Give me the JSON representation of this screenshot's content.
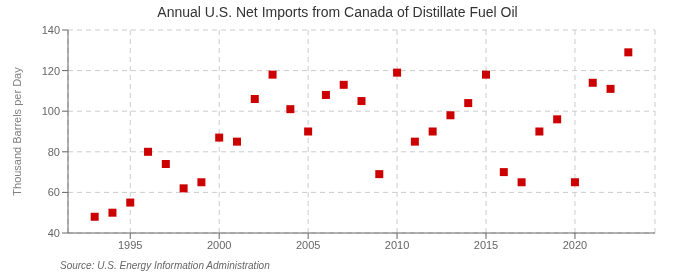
{
  "chart_data": {
    "type": "scatter",
    "title": "Annual U.S. Net Imports from Canada of Distillate Fuel Oil",
    "ylabel": "Thousand Barrels per Day",
    "annotations": [
      "Source: U.S. Energy Information Administration"
    ],
    "x": [
      1993,
      1994,
      1995,
      1996,
      1997,
      1998,
      1999,
      2000,
      2001,
      2002,
      2003,
      2004,
      2005,
      2006,
      2007,
      2008,
      2009,
      2010,
      2011,
      2012,
      2013,
      2014,
      2015,
      2016,
      2017,
      2018,
      2019,
      2020,
      2021,
      2022,
      2023
    ],
    "values": [
      48,
      50,
      55,
      80,
      74,
      62,
      65,
      87,
      85,
      106,
      118,
      101,
      90,
      108,
      113,
      105,
      69,
      119,
      85,
      90,
      98,
      104,
      118,
      70,
      65,
      90,
      96,
      65,
      114,
      111,
      129
    ],
    "color": "#cc0000",
    "marker": "square",
    "xlim": [
      1991.5,
      2024.5
    ],
    "xticks": [
      1995,
      2000,
      2005,
      2010,
      2015,
      2020
    ],
    "ylim": [
      40,
      140
    ],
    "yticks": [
      40,
      60,
      80,
      100,
      120,
      140
    ],
    "grid": true
  }
}
